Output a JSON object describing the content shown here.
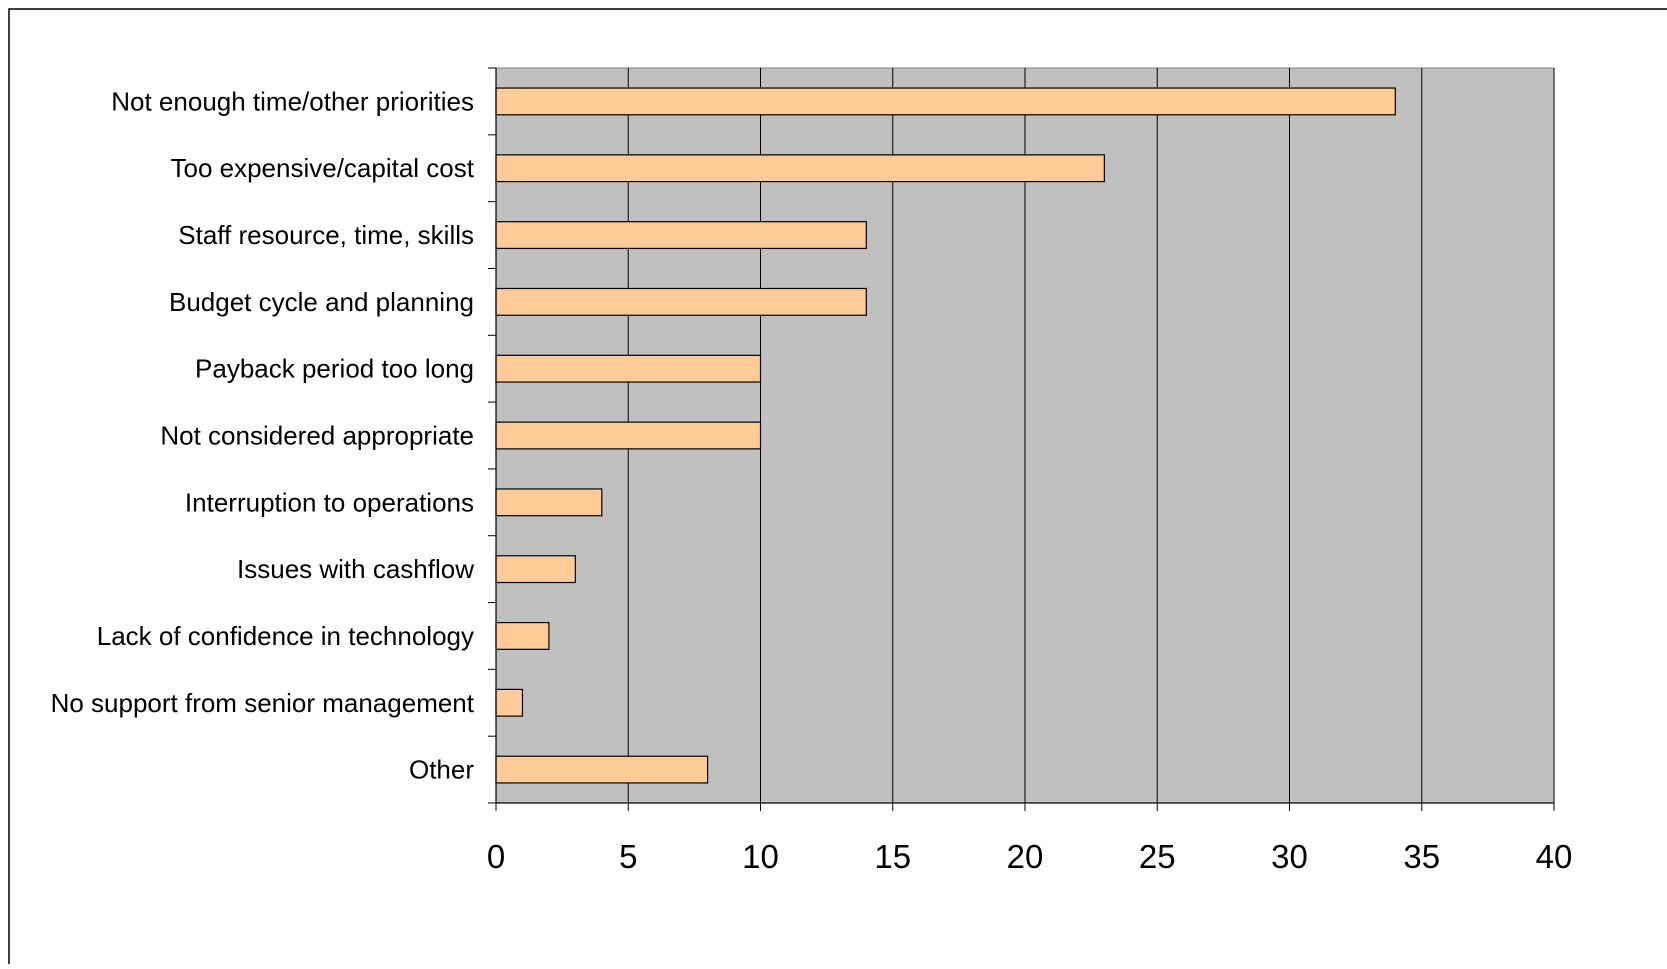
{
  "chart_data": {
    "type": "bar",
    "orientation": "horizontal",
    "title": "",
    "xlabel": "",
    "ylabel": "",
    "categories": [
      "Not enough time/other priorities",
      "Too expensive/capital cost",
      "Staff resource, time, skills",
      "Budget cycle and planning",
      "Payback period too long",
      "Not considered appropriate",
      "Interruption to operations",
      "Issues with cashflow",
      "Lack of confidence in technology",
      "No support from senior management",
      "Other"
    ],
    "values": [
      34,
      23,
      14,
      14,
      10,
      10,
      4,
      3,
      2,
      1,
      8
    ],
    "xlim": [
      0,
      40
    ],
    "xticks": [
      "0",
      "5",
      "10",
      "15",
      "20",
      "25",
      "30",
      "35",
      "40"
    ],
    "grid": true,
    "legend": "none",
    "colors": {
      "bar_fill": "#FFCC99",
      "bar_stroke": "#000000",
      "plot_background": "#C0C0C0",
      "gridline": "#000000"
    }
  }
}
